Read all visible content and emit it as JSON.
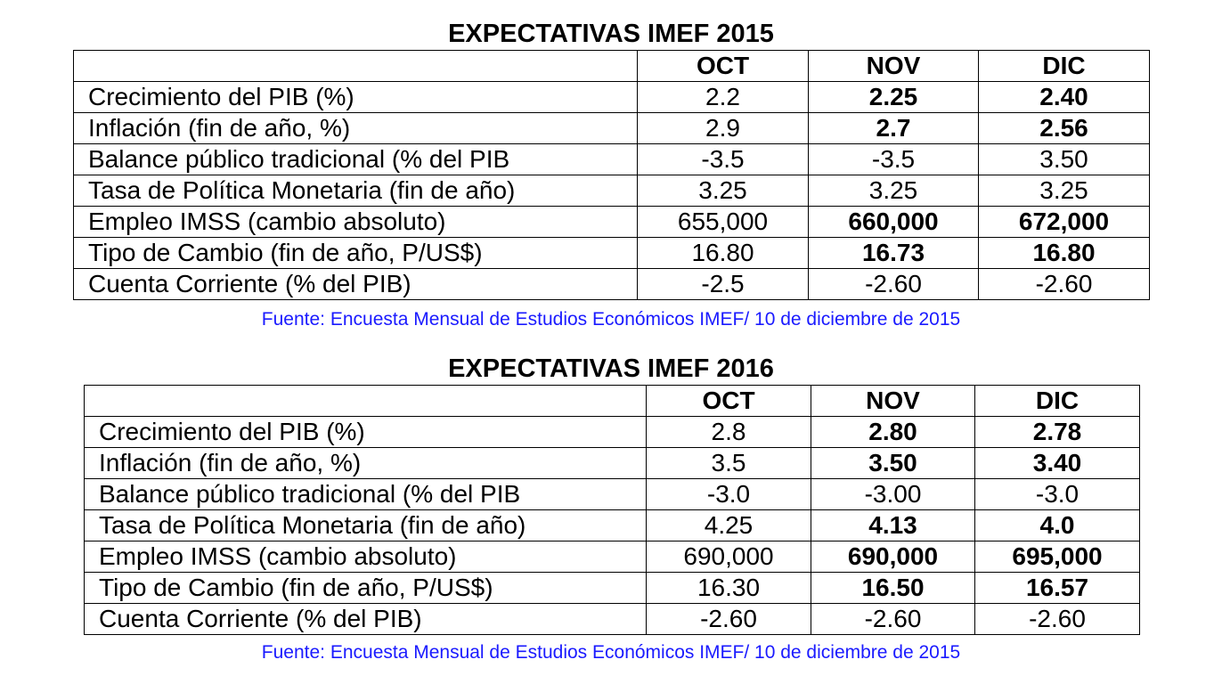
{
  "tables": [
    {
      "title": "EXPECTATIVAS IMEF 2015",
      "headers": [
        "",
        "OCT",
        "NOV",
        "DIC"
      ],
      "rows": [
        {
          "label": "Crecimiento del PIB  (%)",
          "oct": "2.2",
          "nov": "2.25",
          "dic": "2.40",
          "bold": [
            false,
            true,
            true
          ]
        },
        {
          "label": "Inflación (fin de año, %)",
          "oct": "2.9",
          "nov": "2.7",
          "dic": "2.56",
          "bold": [
            false,
            true,
            true
          ]
        },
        {
          "label": "Balance público tradicional (% del PIB",
          "oct": "-3.5",
          "nov": "-3.5",
          "dic": "3.50",
          "bold": [
            false,
            false,
            false
          ]
        },
        {
          "label": "Tasa de Política Monetaria (fin de año)",
          "oct": "3.25",
          "nov": "3.25",
          "dic": "3.25",
          "bold": [
            false,
            false,
            false
          ]
        },
        {
          "label": "Empleo IMSS (cambio absoluto)",
          "oct": "655,000",
          "nov": "660,000",
          "dic": "672,000",
          "bold": [
            false,
            true,
            true
          ]
        },
        {
          "label": "Tipo de Cambio (fin de año, P/US$)",
          "oct": "16.80",
          "nov": "16.73",
          "dic": "16.80",
          "bold": [
            false,
            true,
            true
          ]
        },
        {
          "label": "Cuenta Corriente  (% del PIB)",
          "oct": "-2.5",
          "nov": "-2.60",
          "dic": "-2.60",
          "bold": [
            false,
            false,
            false
          ]
        }
      ],
      "source": "Fuente: Encuesta Mensual de Estudios Económicos IMEF/ 10 de diciembre de 2015"
    },
    {
      "title": "EXPECTATIVAS IMEF 2016",
      "headers": [
        "",
        "OCT",
        "NOV",
        "DIC"
      ],
      "rows": [
        {
          "label": "Crecimiento del PIB  (%)",
          "oct": "2.8",
          "nov": "2.80",
          "dic": "2.78",
          "bold": [
            false,
            true,
            true
          ]
        },
        {
          "label": "Inflación (fin de año, %)",
          "oct": "3.5",
          "nov": "3.50",
          "dic": "3.40",
          "bold": [
            false,
            true,
            true
          ]
        },
        {
          "label": "Balance público tradicional (% del PIB",
          "oct": "-3.0",
          "nov": "-3.00",
          "dic": "-3.0",
          "bold": [
            false,
            false,
            false
          ]
        },
        {
          "label": "Tasa de Política Monetaria (fin de año)",
          "oct": "4.25",
          "nov": "4.13",
          "dic": "4.0",
          "bold": [
            false,
            true,
            true
          ]
        },
        {
          "label": "Empleo IMSS (cambio absoluto)",
          "oct": "690,000",
          "nov": "690,000",
          "dic": "695,000",
          "bold": [
            false,
            true,
            true
          ]
        },
        {
          "label": "Tipo de Cambio (fin de año, P/US$)",
          "oct": "16.30",
          "nov": "16.50",
          "dic": "16.57",
          "bold": [
            false,
            true,
            true
          ]
        },
        {
          "label": "Cuenta Corriente  (% del PIB)",
          "oct": "-2.60",
          "nov": "-2.60",
          "dic": "-2.60",
          "bold": [
            false,
            false,
            false
          ]
        }
      ],
      "source": "Fuente: Encuesta Mensual de Estudios Económicos IMEF/ 10 de diciembre de 2015"
    }
  ]
}
